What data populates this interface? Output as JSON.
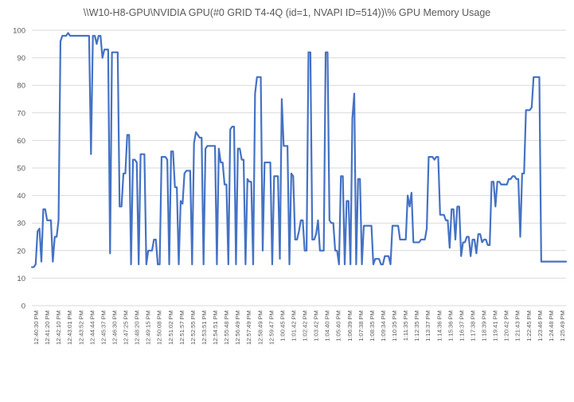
{
  "chart_data": {
    "type": "line",
    "title": "\\\\W10-H8-GPU\\NVIDIA GPU(#0 GRID T4-4Q (id=1, NVAPI ID=514))\\% GPU Memory Usage",
    "xlabel": "",
    "ylabel": "",
    "ylim": [
      0,
      100
    ],
    "yticks": [
      0,
      10,
      20,
      30,
      40,
      50,
      60,
      70,
      80,
      90,
      100
    ],
    "grid": true,
    "legend": "none",
    "line_color": "#4472C4",
    "x_tick_labels": [
      "12:40:30 PM",
      "12:41:20 PM",
      "12:42:10 PM",
      "12:43:01 PM",
      "12:43:52 PM",
      "12:44:44 PM",
      "12:45:37 PM",
      "12:46:30 PM",
      "12:47:25 PM",
      "12:48:20 PM",
      "12:49:15 PM",
      "12:50:08 PM",
      "12:51:02 PM",
      "12:51:57 PM",
      "12:52:55 PM",
      "12:53:51 PM",
      "12:54:51 PM",
      "12:55:48 PM",
      "12:56:49 PM",
      "12:57:49 PM",
      "12:58:49 PM",
      "12:59:47 PM",
      "1:00:45 PM",
      "1:01:42 PM",
      "1:02:42 PM",
      "1:03:42 PM",
      "1:04:40 PM",
      "1:05:40 PM",
      "1:06:39 PM",
      "1:07:38 PM",
      "1:08:35 PM",
      "1:09:34 PM",
      "1:10:35 PM",
      "1:11:35 PM",
      "1:12:35 PM",
      "1:13:37 PM",
      "1:14:36 PM",
      "1:15:36 PM",
      "1:16:37 PM",
      "1:17:38 PM",
      "1:18:39 PM",
      "1:19:41 PM",
      "1:20:42 PM",
      "1:21:43 PM",
      "1:22:45 PM",
      "1:23:46 PM",
      "1:24:48 PM",
      "1:25:49 PM"
    ],
    "values": [
      14,
      14,
      15,
      27,
      28,
      16,
      35,
      35,
      31,
      31,
      31,
      16,
      25,
      25,
      31,
      96,
      98,
      98,
      98,
      99,
      98,
      98,
      98,
      98,
      98,
      98,
      98,
      98,
      98,
      98,
      98,
      55,
      98,
      98,
      95,
      98,
      98,
      90,
      93,
      93,
      93,
      19,
      92,
      92,
      92,
      92,
      36,
      36,
      48,
      48,
      62,
      62,
      15,
      53,
      53,
      52,
      15,
      55,
      55,
      55,
      15,
      20,
      20,
      20,
      24,
      24,
      15,
      15,
      54,
      54,
      54,
      53,
      15,
      56,
      56,
      43,
      43,
      15,
      38,
      37,
      48,
      49,
      49,
      49,
      15,
      59,
      63,
      62,
      61,
      61,
      15,
      57,
      58,
      58,
      58,
      58,
      58,
      15,
      57,
      52,
      52,
      44,
      44,
      15,
      64,
      65,
      65,
      15,
      57,
      57,
      53,
      53,
      15,
      46,
      45,
      45,
      15,
      77,
      83,
      83,
      83,
      20,
      52,
      52,
      52,
      52,
      15,
      47,
      47,
      47,
      17,
      75,
      58,
      58,
      58,
      15,
      48,
      47,
      24,
      24,
      27,
      31,
      31,
      20,
      20,
      92,
      92,
      24,
      24,
      26,
      31,
      20,
      20,
      20,
      92,
      92,
      31,
      30,
      30,
      20,
      20,
      15,
      47,
      47,
      15,
      38,
      38,
      15,
      68,
      77,
      15,
      46,
      46,
      15,
      29,
      29,
      29,
      29,
      29,
      15,
      17,
      17,
      17,
      15,
      15,
      18,
      18,
      18,
      15,
      29,
      29,
      29,
      29,
      24,
      24,
      24,
      24,
      40,
      36,
      41,
      23,
      23,
      23,
      23,
      24,
      24,
      24,
      28,
      54,
      54,
      54,
      53,
      54,
      54,
      33,
      33,
      33,
      31,
      31,
      21,
      35,
      35,
      24,
      36,
      36,
      18,
      23,
      23,
      25,
      25,
      18,
      24,
      24,
      19,
      26,
      26,
      23,
      24,
      24,
      22,
      22,
      45,
      45,
      36,
      45,
      45,
      44,
      44,
      44,
      44,
      46,
      46,
      47,
      47,
      46,
      46,
      25,
      48,
      48,
      71,
      71,
      71,
      72,
      83,
      83,
      83,
      83,
      16,
      16,
      16,
      16,
      16,
      16,
      16,
      16,
      16,
      16,
      16,
      16,
      16,
      16
    ]
  }
}
